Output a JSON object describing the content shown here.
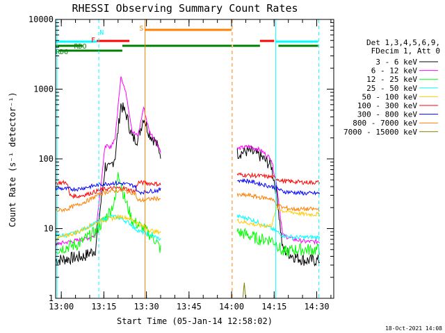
{
  "chart_data": {
    "type": "line",
    "title": "RHESSI Observing Summary Count Rates",
    "xlabel": "Start Time (05-Jan-14 12:58:02)",
    "ylabel": "Count Rate (s⁻¹ detector⁻¹)",
    "yscale": "log",
    "ylim": [
      1,
      10000
    ],
    "xlim_minutes_after_1258": [
      0,
      98
    ],
    "x_ticks": [
      {
        "label": "13:00",
        "min": 2
      },
      {
        "label": "13:15",
        "min": 17
      },
      {
        "label": "13:30",
        "min": 32
      },
      {
        "label": "13:45",
        "min": 47
      },
      {
        "label": "14:00",
        "min": 62
      },
      {
        "label": "14:15",
        "min": 77
      },
      {
        "label": "14:30",
        "min": 92
      }
    ],
    "y_ticks": [
      {
        "label": "1",
        "v": 1
      },
      {
        "label": "10",
        "v": 10
      },
      {
        "label": "100",
        "v": 100
      },
      {
        "label": "1000",
        "v": 1000
      },
      {
        "label": "10000",
        "v": 10000
      }
    ],
    "legend_header": [
      "Det 1,3,4,5,6,9,",
      "FDecim 1, Att 0"
    ],
    "series": [
      {
        "name": "3 - 6 keV",
        "color": "#000000",
        "seg1": [
          [
            0,
            3.5
          ],
          [
            10,
            4
          ],
          [
            14,
            5
          ],
          [
            17.5,
            80
          ],
          [
            19,
            70
          ],
          [
            21,
            110
          ],
          [
            23,
            600
          ],
          [
            25,
            420
          ],
          [
            27,
            200
          ],
          [
            29,
            190
          ],
          [
            31,
            400
          ],
          [
            33,
            230
          ],
          [
            35,
            180
          ],
          [
            37,
            120
          ]
        ],
        "seg2": [
          [
            64,
            120
          ],
          [
            68,
            130
          ],
          [
            72,
            110
          ],
          [
            76,
            80
          ],
          [
            78,
            30
          ],
          [
            80,
            5
          ],
          [
            84,
            4
          ],
          [
            88,
            3.5
          ],
          [
            93,
            3.5
          ]
        ]
      },
      {
        "name": "6 - 12 keV",
        "color": "#ff00ff",
        "seg1": [
          [
            0,
            6
          ],
          [
            10,
            7
          ],
          [
            14,
            8
          ],
          [
            17.5,
            160
          ],
          [
            19,
            140
          ],
          [
            21,
            200
          ],
          [
            23,
            1600
          ],
          [
            25,
            800
          ],
          [
            27,
            250
          ],
          [
            29,
            210
          ],
          [
            31,
            550
          ],
          [
            33,
            250
          ],
          [
            35,
            190
          ],
          [
            37,
            130
          ]
        ],
        "seg2": [
          [
            64,
            140
          ],
          [
            68,
            150
          ],
          [
            72,
            135
          ],
          [
            76,
            100
          ],
          [
            78,
            40
          ],
          [
            80,
            8
          ],
          [
            84,
            7
          ],
          [
            88,
            6.5
          ],
          [
            93,
            6.5
          ]
        ]
      },
      {
        "name": "12 - 25 keV",
        "color": "#00ff00",
        "seg1": [
          [
            0,
            5
          ],
          [
            8,
            6
          ],
          [
            14,
            9
          ],
          [
            18,
            15
          ],
          [
            21,
            25
          ],
          [
            22,
            70
          ],
          [
            24,
            30
          ],
          [
            27,
            13
          ],
          [
            31,
            10
          ],
          [
            35,
            7
          ],
          [
            37,
            5
          ]
        ],
        "seg2": [
          [
            64,
            9
          ],
          [
            68,
            8
          ],
          [
            72,
            7
          ],
          [
            76,
            7
          ],
          [
            78,
            6
          ],
          [
            80,
            4.5
          ],
          [
            84,
            5
          ],
          [
            88,
            5
          ],
          [
            93,
            5
          ]
        ]
      },
      {
        "name": "25 - 50 keV",
        "color": "#00ffff",
        "seg1": [
          [
            0,
            8
          ],
          [
            4,
            8
          ],
          [
            8,
            9
          ],
          [
            12,
            11
          ],
          [
            16,
            13
          ],
          [
            20,
            15
          ],
          [
            23,
            14
          ],
          [
            26,
            12
          ],
          [
            28,
            10
          ],
          [
            30,
            9
          ],
          [
            34,
            8
          ],
          [
            37,
            7
          ]
        ],
        "seg2": [
          [
            64,
            15
          ],
          [
            68,
            14
          ],
          [
            72,
            12
          ],
          [
            76,
            10
          ],
          [
            78,
            9
          ],
          [
            80,
            8
          ],
          [
            84,
            7.5
          ],
          [
            88,
            7.5
          ],
          [
            93,
            7.5
          ]
        ]
      },
      {
        "name": "50 - 100 keV",
        "color": "#ffcc00",
        "seg1": [
          [
            0,
            7
          ],
          [
            4,
            8
          ],
          [
            8,
            9
          ],
          [
            12,
            11
          ],
          [
            16,
            13
          ],
          [
            20,
            14
          ],
          [
            23,
            15
          ],
          [
            26,
            14
          ],
          [
            29,
            12
          ],
          [
            32,
            10
          ],
          [
            35,
            9
          ],
          [
            37,
            9
          ]
        ],
        "seg2": [
          [
            64,
            13
          ],
          [
            68,
            12
          ],
          [
            72,
            11
          ],
          [
            76,
            11
          ],
          [
            78,
            20
          ],
          [
            80,
            18
          ],
          [
            84,
            17
          ],
          [
            88,
            16
          ],
          [
            93,
            16
          ]
        ]
      },
      {
        "name": "100 - 300 keV",
        "color": "#ff0000",
        "seg1": [
          [
            0,
            45
          ],
          [
            4,
            46
          ],
          [
            5,
            30
          ],
          [
            8,
            29
          ],
          [
            12,
            32
          ],
          [
            16,
            36
          ],
          [
            20,
            38
          ],
          [
            24,
            38
          ],
          [
            28,
            34
          ],
          [
            29,
            46
          ],
          [
            32,
            45
          ],
          [
            35,
            44
          ],
          [
            37,
            43
          ]
        ],
        "seg2": [
          [
            64,
            60
          ],
          [
            68,
            58
          ],
          [
            72,
            57
          ],
          [
            76,
            55
          ],
          [
            78,
            52
          ],
          [
            80,
            48
          ],
          [
            84,
            47
          ],
          [
            88,
            46
          ],
          [
            93,
            46
          ]
        ]
      },
      {
        "name": "300 - 800 keV",
        "color": "#0000ff",
        "seg1": [
          [
            0,
            38
          ],
          [
            4,
            37
          ],
          [
            8,
            37
          ],
          [
            12,
            40
          ],
          [
            16,
            43
          ],
          [
            20,
            45
          ],
          [
            24,
            44
          ],
          [
            28,
            41
          ],
          [
            29,
            33
          ],
          [
            32,
            34
          ],
          [
            35,
            35
          ],
          [
            37,
            36
          ]
        ],
        "seg2": [
          [
            64,
            50
          ],
          [
            68,
            48
          ],
          [
            72,
            44
          ],
          [
            76,
            40
          ],
          [
            78,
            38
          ],
          [
            80,
            34
          ],
          [
            84,
            33
          ],
          [
            88,
            32
          ],
          [
            93,
            32
          ]
        ]
      },
      {
        "name": "800 - 7000 keV",
        "color": "#ff8000",
        "seg1": [
          [
            0,
            18
          ],
          [
            4,
            19
          ],
          [
            5,
            20
          ],
          [
            8,
            22
          ],
          [
            12,
            26
          ],
          [
            16,
            32
          ],
          [
            20,
            35
          ],
          [
            24,
            35
          ],
          [
            28,
            32
          ],
          [
            29,
            25
          ],
          [
            32,
            26
          ],
          [
            35,
            27
          ],
          [
            37,
            27
          ]
        ],
        "seg2": [
          [
            64,
            30
          ],
          [
            68,
            30
          ],
          [
            72,
            28
          ],
          [
            76,
            27
          ],
          [
            78,
            22
          ],
          [
            80,
            20
          ],
          [
            84,
            19
          ],
          [
            88,
            19
          ],
          [
            93,
            19
          ]
        ]
      },
      {
        "name": "7000 - 15000 keV",
        "color": "#808000",
        "seg1": [],
        "seg2": [
          [
            66,
            1
          ],
          [
            66.5,
            1.6
          ],
          [
            67,
            1
          ]
        ]
      }
    ],
    "flags": [
      {
        "label": "",
        "color": "#00ffff",
        "y": 60,
        "spans": [
          [
            0,
            14.5
          ],
          [
            77.5,
            92.5
          ]
        ],
        "labels": []
      },
      {
        "label": "",
        "color": "#ff0000",
        "y": 59,
        "spans": [
          [
            14.5,
            26
          ],
          [
            72,
            77
          ]
        ],
        "labels": []
      },
      {
        "label": "",
        "color": "#ff8000",
        "y": 43,
        "spans": [
          [
            31.5,
            62
          ]
        ],
        "labels": []
      },
      {
        "label": "",
        "color": "#008000",
        "y": 66,
        "spans": [
          [
            0,
            9.5
          ],
          [
            23.5,
            62
          ],
          [
            62.5,
            72
          ],
          [
            78.5,
            92.5
          ]
        ],
        "labels": []
      },
      {
        "label": "",
        "color": "#008000",
        "y": 73,
        "spans": [
          [
            1,
            23.5
          ]
        ],
        "labels": []
      }
    ],
    "flag_labels": [
      {
        "text": "N",
        "color": "#00ffff",
        "min": 15.5,
        "yv": 46
      },
      {
        "text": "F",
        "color": "#ff0000",
        "min": 12.5,
        "yv": 57
      },
      {
        "text": "S",
        "color": "#ff8000",
        "min": 29.5,
        "yv": 40
      },
      {
        "text": "RDO",
        "color": "#008000",
        "min": 6.5,
        "yv": 66
      },
      {
        "text": "RD6",
        "color": "#008000",
        "min": 0,
        "yv": 74
      }
    ],
    "vlines": [
      {
        "min": 0.5,
        "color": "#00ffff",
        "dash": false
      },
      {
        "min": 15.2,
        "color": "#00ffff",
        "dash": true
      },
      {
        "min": 31.5,
        "color": "#ff8000",
        "dash": false
      },
      {
        "min": 62.2,
        "color": "#ff8000",
        "dash": true
      },
      {
        "min": 77.5,
        "color": "#00ffff",
        "dash": false
      },
      {
        "min": 92.7,
        "color": "#00ffff",
        "dash": true
      }
    ],
    "timestamp": "18-Oct-2021 14:08"
  }
}
